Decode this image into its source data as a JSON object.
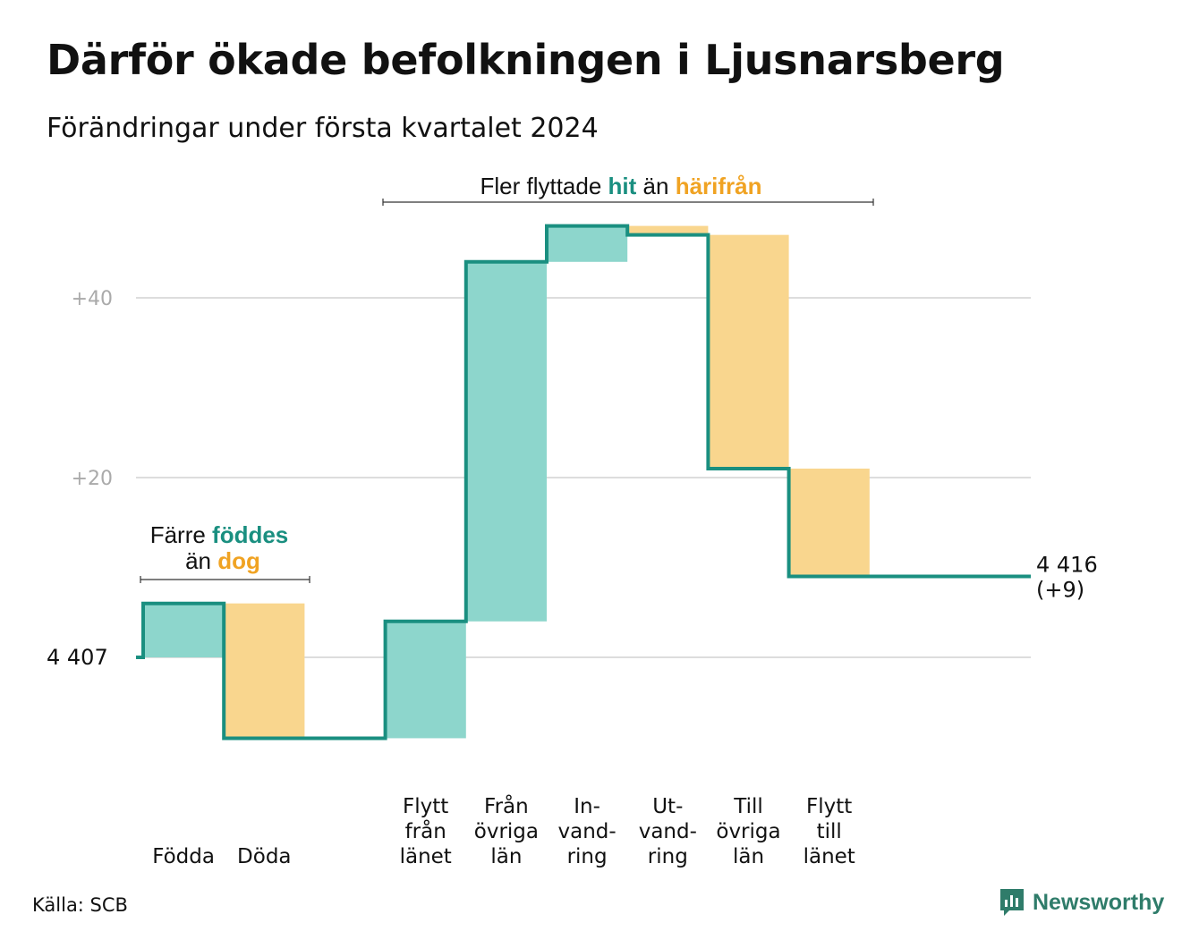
{
  "title": "Därför ökade befolkningen i Ljusnarsberg",
  "subtitle": "Förändringar under första kvartalet 2024",
  "source": "Källa: SCB",
  "brand": {
    "name": "Newsworthy",
    "icon": "newsworthy-logo-icon"
  },
  "colors": {
    "line": "#1a8f80",
    "increase": "#8dd6cc",
    "decrease": "#f9d68e",
    "accent_teal": "#1a8f80",
    "accent_orange": "#f0a323",
    "grid": "#dddddd",
    "tick": "#aaaaaa"
  },
  "annotations": {
    "group_births": {
      "line1_pre": "Färre ",
      "line1_hl": "föddes",
      "line2_pre": "än ",
      "line2_hl": "dog"
    },
    "group_moves": {
      "pre": "Fler flyttade ",
      "hl1": "hit",
      "mid": " än ",
      "hl2": "härifrån"
    }
  },
  "chart_data": {
    "type": "waterfall",
    "start": {
      "value": 4407,
      "label": "4  407"
    },
    "end": {
      "value": 4416,
      "label_lines": [
        "4 416",
        "(+9)"
      ]
    },
    "y_ticks": [
      {
        "value": 20,
        "label": "+20"
      },
      {
        "value": 40,
        "label": "+40"
      }
    ],
    "ylim": [
      -12,
      50
    ],
    "grid": true,
    "steps": [
      {
        "label_lines": [
          "Födda"
        ],
        "change": 6
      },
      {
        "label_lines": [
          "Döda"
        ],
        "change": -15
      },
      {
        "label_lines": [],
        "change": 0
      },
      {
        "label_lines": [
          "Flytt",
          "från",
          "länet"
        ],
        "change": 13
      },
      {
        "label_lines": [
          "Från",
          "övriga",
          "län"
        ],
        "change": 40
      },
      {
        "label_lines": [
          "In-",
          "vand-",
          "ring"
        ],
        "change": 4
      },
      {
        "label_lines": [
          "Ut-",
          "vand-",
          "ring"
        ],
        "change": -1
      },
      {
        "label_lines": [
          "Till",
          "övriga",
          "län"
        ],
        "change": -26
      },
      {
        "label_lines": [
          "Flytt",
          "till",
          "länet"
        ],
        "change": -12
      }
    ]
  }
}
